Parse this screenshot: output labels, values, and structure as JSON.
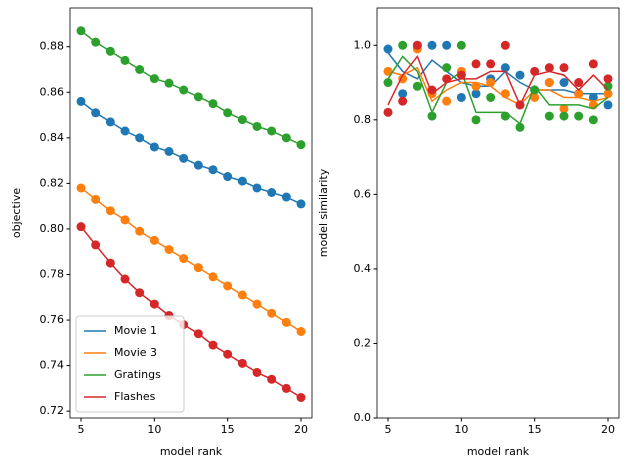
{
  "chart_data": [
    {
      "type": "line",
      "xlabel": "model rank",
      "ylabel": "objective",
      "x": [
        5,
        6,
        7,
        8,
        9,
        10,
        11,
        12,
        13,
        14,
        15,
        16,
        17,
        18,
        19,
        20
      ],
      "xlim": [
        4.25,
        20.75
      ],
      "xticks": [
        5,
        10,
        15,
        20
      ],
      "ylim": [
        0.717,
        0.897
      ],
      "yticks": [
        0.72,
        0.74,
        0.76,
        0.78,
        {
          "value": 0.8,
          "label": "0.80"
        },
        0.82,
        0.84,
        0.86,
        0.88
      ],
      "legend": "lower left",
      "series": [
        {
          "name": "Movie 1",
          "color": "#1f77b4",
          "values": [
            0.856,
            0.851,
            0.847,
            0.843,
            0.84,
            0.836,
            0.834,
            0.831,
            0.828,
            0.826,
            0.823,
            0.821,
            0.818,
            0.816,
            0.814,
            0.811
          ]
        },
        {
          "name": "Movie 3",
          "color": "#ff7f0e",
          "values": [
            0.818,
            0.813,
            0.808,
            0.804,
            0.799,
            0.795,
            0.791,
            0.787,
            0.783,
            0.779,
            0.775,
            0.771,
            0.767,
            0.763,
            0.759,
            0.755
          ]
        },
        {
          "name": "Gratings",
          "color": "#2ca02c",
          "values": [
            0.887,
            0.882,
            0.878,
            0.874,
            0.87,
            0.866,
            0.864,
            0.861,
            0.858,
            0.855,
            0.851,
            0.848,
            0.845,
            0.843,
            0.84,
            0.837
          ]
        },
        {
          "name": "Flashes",
          "color": "#d62728",
          "values": [
            0.801,
            0.793,
            0.785,
            0.778,
            0.772,
            0.767,
            0.762,
            0.758,
            0.754,
            0.749,
            0.745,
            0.741,
            0.737,
            0.734,
            0.73,
            0.726
          ]
        }
      ]
    },
    {
      "type": "line",
      "xlabel": "model rank",
      "ylabel": "model similarity",
      "x": [
        5,
        6,
        7,
        8,
        9,
        10,
        11,
        12,
        13,
        14,
        15,
        16,
        17,
        18,
        19,
        20
      ],
      "xlim": [
        4.25,
        20.75
      ],
      "xticks": [
        5,
        10,
        15,
        20
      ],
      "ylim": [
        0,
        1.1
      ],
      "yticks": [
        {
          "value": 0,
          "label": "0.0"
        },
        0.2,
        0.4,
        0.6,
        0.8,
        {
          "value": 1,
          "label": "1.0"
        }
      ],
      "series": [
        {
          "color": "#1f77b4",
          "values": [
            0.98,
            0.93,
            0.91,
            0.96,
            0.93,
            0.9,
            0.89,
            0.89,
            0.93,
            0.9,
            0.88,
            0.88,
            0.88,
            0.87,
            0.87,
            0.87
          ],
          "points": [
            0.99,
            0.87,
            1.0,
            1.0,
            1.0,
            0.86,
            0.87,
            0.91,
            0.94,
            0.92,
            0.88,
            0.9,
            0.9,
            0.87,
            0.86,
            0.84
          ]
        },
        {
          "color": "#ff7f0e",
          "values": [
            0.93,
            0.92,
            0.94,
            0.85,
            0.88,
            0.9,
            0.9,
            0.89,
            0.86,
            0.84,
            0.88,
            0.88,
            0.86,
            0.86,
            0.85,
            0.86
          ],
          "points": [
            0.93,
            0.91,
            0.99,
            0.87,
            0.85,
            0.93,
            0.89,
            0.9,
            0.87,
            0.84,
            0.86,
            0.9,
            0.83,
            0.87,
            0.84,
            0.87
          ]
        },
        {
          "color": "#2ca02c",
          "values": [
            0.91,
            0.97,
            0.93,
            0.82,
            0.9,
            0.93,
            0.82,
            0.82,
            0.82,
            0.79,
            0.89,
            0.84,
            0.84,
            0.84,
            0.83,
            0.86
          ],
          "points": [
            0.9,
            1.0,
            0.89,
            0.81,
            0.94,
            1.0,
            0.8,
            0.86,
            0.81,
            0.78,
            0.88,
            0.81,
            0.81,
            0.81,
            0.8,
            0.89
          ]
        },
        {
          "color": "#d62728",
          "values": [
            0.84,
            0.92,
            0.97,
            0.87,
            0.9,
            0.91,
            0.91,
            0.93,
            0.93,
            0.84,
            0.92,
            0.93,
            0.92,
            0.88,
            0.92,
            0.88
          ],
          "points": [
            0.82,
            0.85,
            1.0,
            0.88,
            0.91,
            0.92,
            0.95,
            0.95,
            1.0,
            0.84,
            0.93,
            0.94,
            0.94,
            0.9,
            0.95,
            0.91
          ]
        }
      ]
    }
  ]
}
